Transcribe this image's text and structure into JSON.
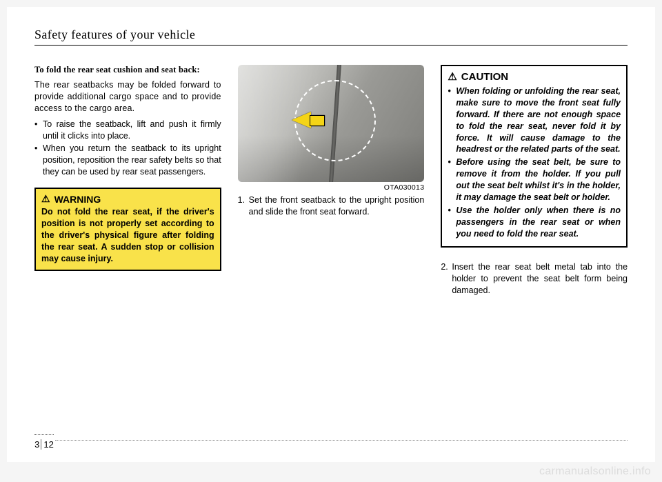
{
  "header": {
    "title": "Safety features of your vehicle"
  },
  "col1": {
    "subhead": "To fold the rear seat cushion and seat back:",
    "intro": "The rear seatbacks may be folded forward to provide additional cargo space and to provide access to the cargo area.",
    "bullets": [
      "To raise the seatback, lift and push it firmly until it clicks into place.",
      "When you return the seatback to its upright position, reposition the rear safety belts so that they can be used by rear seat passengers."
    ],
    "warning": {
      "head": "WARNING",
      "body": "Do not fold the rear seat, if the driver's position is not properly set according to the driver's physical figure after folding the rear seat. A sudden stop or collision may cause injury."
    }
  },
  "col2": {
    "fig_code": "OTA030013",
    "step1": "Set the front seatback to the upright position and slide the front seat forward."
  },
  "col3": {
    "caution": {
      "head": "CAUTION",
      "bullets": [
        "When folding or unfolding the rear seat, make sure to move the front seat fully forward. If there are not enough space to fold the rear seat, never fold it by force. It will cause damage to the headrest or the related parts of the seat.",
        "Before using the seat belt, be sure to remove it from the holder. If you pull out the seat belt whilst it's in the holder, it may damage the seat belt or holder.",
        "Use the holder only when there is no passengers in the rear seat or when you need to fold the rear seat."
      ]
    },
    "step2": "Insert the rear seat belt metal tab into the holder to prevent the seat belt form being damaged."
  },
  "pagenum": {
    "section": "3",
    "page": "12"
  },
  "watermark": "carmanualsonline.info",
  "colors": {
    "page_bg": "#ffffff",
    "body_bg": "#f5f5f5",
    "warn_bg": "#f9e24a",
    "arrow": "#f4d417",
    "watermark": "#dcdcdc"
  }
}
